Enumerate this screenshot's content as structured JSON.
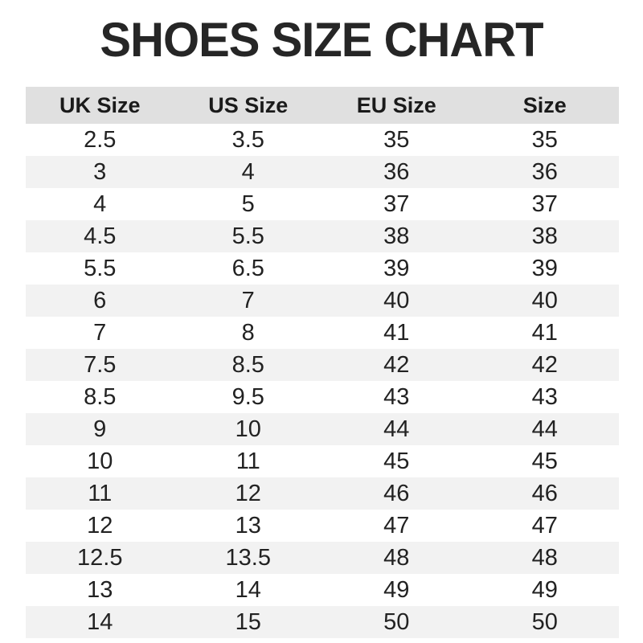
{
  "title": "SHOES SIZE CHART",
  "colors": {
    "header_bg": "#e0e0e0",
    "row_bg": "#ffffff",
    "row_alt_bg": "#f2f2f2",
    "text": "#222222",
    "title_text": "#262626"
  },
  "chart_data": {
    "type": "table",
    "title": "SHOES SIZE CHART",
    "columns": [
      "UK Size",
      "US Size",
      "EU Size",
      "Size"
    ],
    "rows": [
      [
        "2.5",
        "3.5",
        "35",
        "35"
      ],
      [
        "3",
        "4",
        "36",
        "36"
      ],
      [
        "4",
        "5",
        "37",
        "37"
      ],
      [
        "4.5",
        "5.5",
        "38",
        "38"
      ],
      [
        "5.5",
        "6.5",
        "39",
        "39"
      ],
      [
        "6",
        "7",
        "40",
        "40"
      ],
      [
        "7",
        "8",
        "41",
        "41"
      ],
      [
        "7.5",
        "8.5",
        "42",
        "42"
      ],
      [
        "8.5",
        "9.5",
        "43",
        "43"
      ],
      [
        "9",
        "10",
        "44",
        "44"
      ],
      [
        "10",
        "11",
        "45",
        "45"
      ],
      [
        "11",
        "12",
        "46",
        "46"
      ],
      [
        "12",
        "13",
        "47",
        "47"
      ],
      [
        "12.5",
        "13.5",
        "48",
        "48"
      ],
      [
        "13",
        "14",
        "49",
        "49"
      ],
      [
        "14",
        "15",
        "50",
        "50"
      ]
    ],
    "layout": {
      "row_striping": "white / light-gray alternating, starting white",
      "alignment": "all columns center-aligned",
      "grid": "off"
    }
  }
}
